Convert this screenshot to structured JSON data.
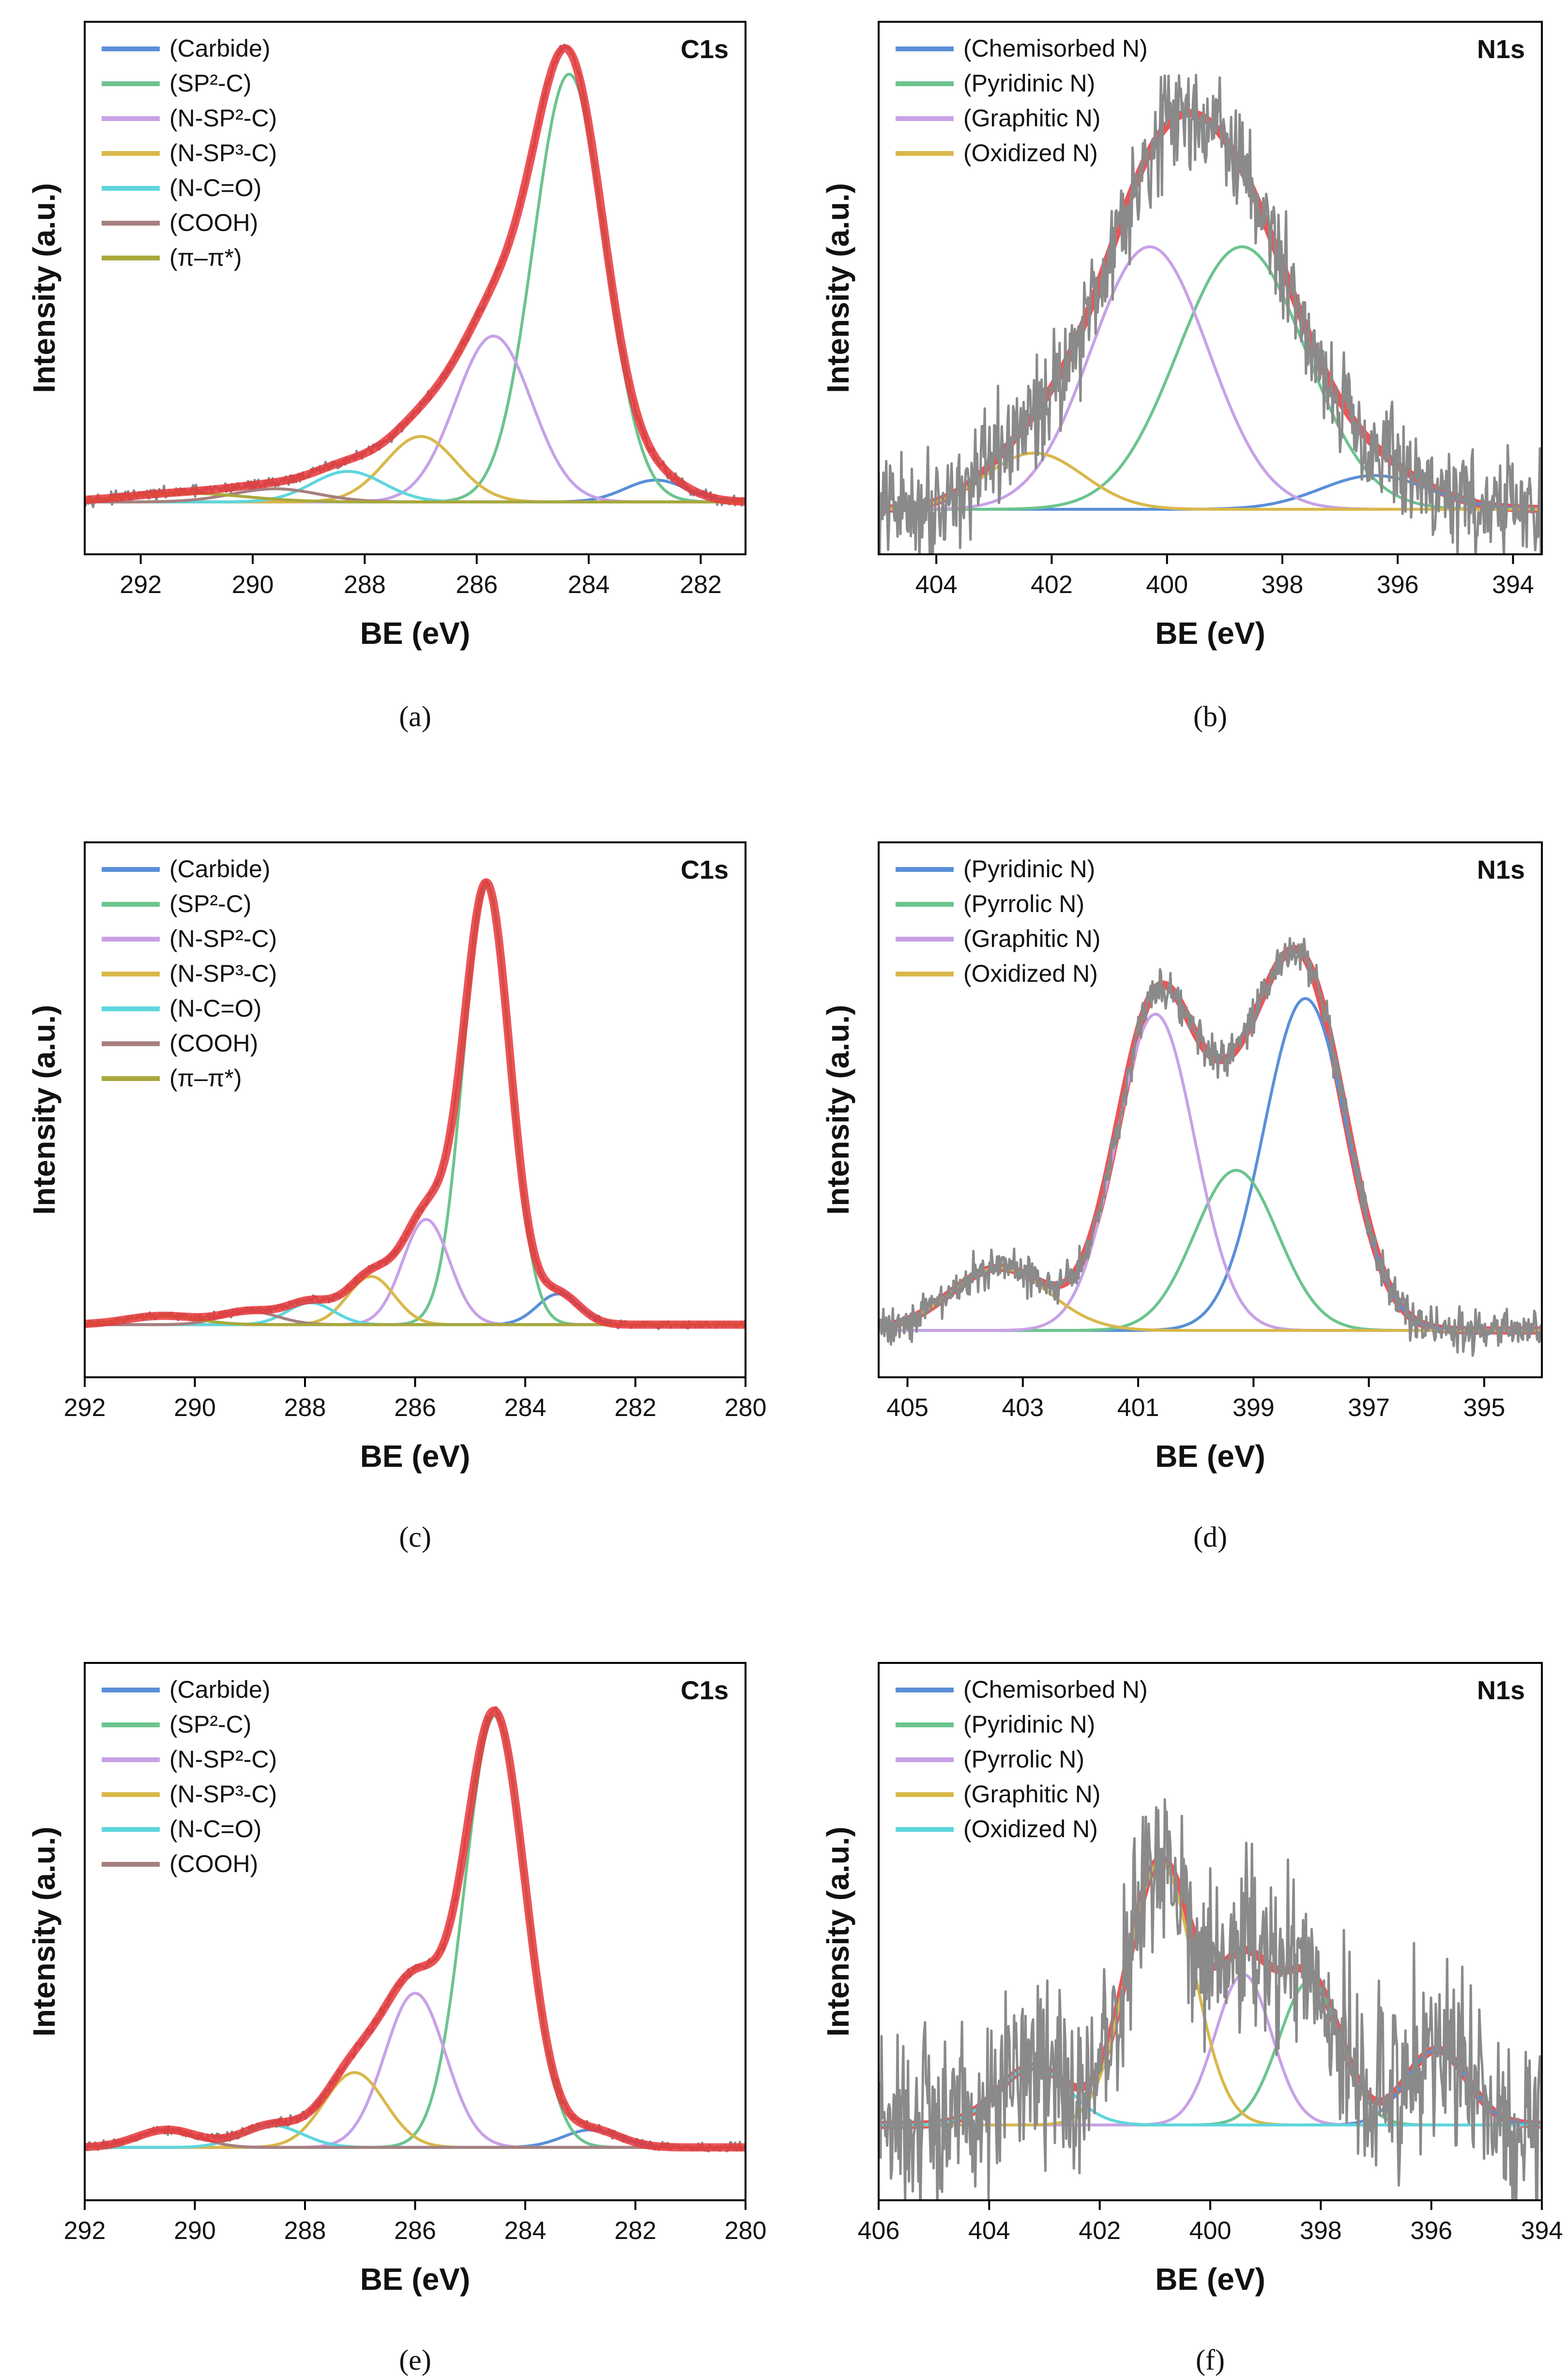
{
  "figure": {
    "styles": {
      "envelope": "#e8373a",
      "raw": "#8a8a8a",
      "frame": "#000000"
    },
    "panels": [
      {
        "id": "a",
        "caption": "(a)",
        "tag": "C1s",
        "xlabel": "BE (eV)",
        "ylabel": "Intensity (a.u.)",
        "xlim": [
          293,
          281.2
        ],
        "xticks": [
          292,
          290,
          288,
          286,
          284,
          282
        ],
        "ylim": [
          -0.12,
          1.1
        ],
        "noise": 0.006,
        "raw_on_top": false,
        "components": [
          {
            "label": "(Carbide)",
            "color": "#5a8fd8",
            "center": 282.8,
            "height": 0.05,
            "fwhm": 1.3
          },
          {
            "label": "(SP²-C)",
            "color": "#6cc48e",
            "center": 284.35,
            "height": 0.98,
            "fwhm": 1.5
          },
          {
            "label": "(N-SP²-C)",
            "color": "#c8a1e6",
            "center": 285.7,
            "height": 0.38,
            "fwhm": 1.6
          },
          {
            "label": "(N-SP³-C)",
            "color": "#d9b84a",
            "center": 287.0,
            "height": 0.15,
            "fwhm": 1.5
          },
          {
            "label": "(N-C=O)",
            "color": "#5ed6dc",
            "center": 288.3,
            "height": 0.07,
            "fwhm": 1.5
          },
          {
            "label": "(COOH)",
            "color": "#a67f7f",
            "center": 289.6,
            "height": 0.03,
            "fwhm": 1.8
          },
          {
            "label": "(π–π*)",
            "color": "#a8a83c",
            "center": 291.2,
            "height": 0.02,
            "fwhm": 2.5
          }
        ]
      },
      {
        "id": "b",
        "caption": "(b)",
        "tag": "N1s",
        "xlabel": "BE (eV)",
        "ylabel": "Intensity (a.u.)",
        "xlim": [
          405,
          393.5
        ],
        "xticks": [
          404,
          402,
          400,
          398,
          396,
          394
        ],
        "ylim": [
          -0.12,
          1.3
        ],
        "noise": 0.07,
        "raw_on_top": true,
        "components": [
          {
            "label": "(Chemisorbed N)",
            "color": "#5a8fd8",
            "center": 396.4,
            "height": 0.09,
            "fwhm": 2.2
          },
          {
            "label": "(Pyridinic N)",
            "color": "#6cc48e",
            "center": 398.7,
            "height": 0.7,
            "fwhm": 2.6
          },
          {
            "label": "(Graphitic N)",
            "color": "#c8a1e6",
            "center": 400.3,
            "height": 0.7,
            "fwhm": 2.4
          },
          {
            "label": "(Oxidized N)",
            "color": "#d9b84a",
            "center": 402.3,
            "height": 0.15,
            "fwhm": 2.0
          }
        ]
      },
      {
        "id": "c",
        "caption": "(c)",
        "tag": "C1s",
        "xlabel": "BE (eV)",
        "ylabel": "Intensity (a.u.)",
        "xlim": [
          292,
          280
        ],
        "xticks": [
          292,
          290,
          288,
          286,
          284,
          282,
          280
        ],
        "ylim": [
          -0.12,
          1.1
        ],
        "noise": 0.004,
        "raw_on_top": false,
        "components": [
          {
            "label": "(Carbide)",
            "color": "#5a8fd8",
            "center": 283.4,
            "height": 0.07,
            "fwhm": 0.9
          },
          {
            "label": "(SP²-C)",
            "color": "#6cc48e",
            "center": 284.7,
            "height": 1.0,
            "fwhm": 1.0
          },
          {
            "label": "(N-SP²-C)",
            "color": "#c8a1e6",
            "center": 285.8,
            "height": 0.24,
            "fwhm": 1.0
          },
          {
            "label": "(N-SP³-C)",
            "color": "#d9b84a",
            "center": 286.8,
            "height": 0.11,
            "fwhm": 1.0
          },
          {
            "label": "(N-C=O)",
            "color": "#5ed6dc",
            "center": 287.9,
            "height": 0.05,
            "fwhm": 1.0
          },
          {
            "label": "(COOH)",
            "color": "#a67f7f",
            "center": 289.0,
            "height": 0.03,
            "fwhm": 1.2
          },
          {
            "label": "(π–π*)",
            "color": "#a8a83c",
            "center": 290.6,
            "height": 0.02,
            "fwhm": 1.5
          }
        ]
      },
      {
        "id": "d",
        "caption": "(d)",
        "tag": "N1s",
        "xlabel": "BE (eV)",
        "ylabel": "Intensity (a.u.)",
        "xlim": [
          405.5,
          394
        ],
        "xticks": [
          405,
          403,
          401,
          399,
          397,
          395
        ],
        "ylim": [
          -0.12,
          1.25
        ],
        "noise": 0.025,
        "raw_on_top": true,
        "components": [
          {
            "label": "(Pyridinic N)",
            "color": "#5a8fd8",
            "center": 398.1,
            "height": 0.85,
            "fwhm": 1.7
          },
          {
            "label": "(Pyrrolic N)",
            "color": "#6cc48e",
            "center": 399.3,
            "height": 0.41,
            "fwhm": 1.7
          },
          {
            "label": "(Graphitic N)",
            "color": "#c8a1e6",
            "center": 400.7,
            "height": 0.81,
            "fwhm": 1.6
          },
          {
            "label": "(Oxidized N)",
            "color": "#d9b84a",
            "center": 403.4,
            "height": 0.16,
            "fwhm": 2.0
          }
        ]
      },
      {
        "id": "e",
        "caption": "(e)",
        "tag": "C1s",
        "xlabel": "BE (eV)",
        "ylabel": "Intensity (a.u.)",
        "xlim": [
          292,
          280
        ],
        "xticks": [
          292,
          290,
          288,
          286,
          284,
          282,
          280
        ],
        "ylim": [
          -0.12,
          1.1
        ],
        "noise": 0.005,
        "raw_on_top": false,
        "components": [
          {
            "label": "(Carbide)",
            "color": "#5a8fd8",
            "center": 282.8,
            "height": 0.04,
            "fwhm": 1.2
          },
          {
            "label": "(SP²-C)",
            "color": "#6cc48e",
            "center": 284.55,
            "height": 0.98,
            "fwhm": 1.3
          },
          {
            "label": "(N-SP²-C)",
            "color": "#c8a1e6",
            "center": 286.0,
            "height": 0.35,
            "fwhm": 1.3
          },
          {
            "label": "(N-SP³-C)",
            "color": "#d9b84a",
            "center": 287.1,
            "height": 0.17,
            "fwhm": 1.3
          },
          {
            "label": "(N-C=O)",
            "color": "#5ed6dc",
            "center": 288.6,
            "height": 0.05,
            "fwhm": 1.3
          },
          {
            "label": "(COOH)",
            "color": "#a67f7f",
            "center": 290.5,
            "height": 0.04,
            "fwhm": 1.3
          }
        ]
      },
      {
        "id": "f",
        "caption": "(f)",
        "tag": "N1s",
        "xlabel": "BE (eV)",
        "ylabel": "Intensity (a.u.)",
        "xlim": [
          406,
          394
        ],
        "xticks": [
          406,
          404,
          402,
          400,
          398,
          396,
          394
        ],
        "ylim": [
          -0.22,
          1.35
        ],
        "noise": 0.13,
        "raw_on_top": true,
        "components": [
          {
            "label": "(Chemisorbed N)",
            "color": "#5a8fd8",
            "center": 395.9,
            "height": 0.22,
            "fwhm": 1.3
          },
          {
            "label": "(Pyridinic N)",
            "color": "#6cc48e",
            "center": 398.2,
            "height": 0.42,
            "fwhm": 1.3
          },
          {
            "label": "(Pyrrolic N)",
            "color": "#c8a1e6",
            "center": 399.4,
            "height": 0.44,
            "fwhm": 1.2
          },
          {
            "label": "(Graphitic N)",
            "color": "#d9b84a",
            "center": 400.9,
            "height": 0.77,
            "fwhm": 1.4
          },
          {
            "label": "(Oxidized N)",
            "color": "#5ed6dc",
            "center": 403.2,
            "height": 0.17,
            "fwhm": 1.5
          }
        ]
      }
    ]
  },
  "chart_data": [
    {
      "type": "line",
      "title": "C1s",
      "xlabel": "BE (eV)",
      "ylabel": "Intensity (a.u.)",
      "xlim": [
        293,
        281.2
      ],
      "series": [
        {
          "name": "(Carbide)",
          "peak_x": 282.8,
          "peak_y": 0.05
        },
        {
          "name": "(SP²-C)",
          "peak_x": 284.35,
          "peak_y": 0.98
        },
        {
          "name": "(N-SP²-C)",
          "peak_x": 285.7,
          "peak_y": 0.38
        },
        {
          "name": "(N-SP³-C)",
          "peak_x": 287.0,
          "peak_y": 0.15
        },
        {
          "name": "(N-C=O)",
          "peak_x": 288.3,
          "peak_y": 0.07
        },
        {
          "name": "(COOH)",
          "peak_x": 289.6,
          "peak_y": 0.03
        },
        {
          "name": "(π–π*)",
          "peak_x": 291.2,
          "peak_y": 0.02
        }
      ]
    },
    {
      "type": "line",
      "title": "N1s",
      "xlabel": "BE (eV)",
      "ylabel": "Intensity (a.u.)",
      "xlim": [
        405,
        393.5
      ],
      "series": [
        {
          "name": "(Chemisorbed N)",
          "peak_x": 396.4,
          "peak_y": 0.09
        },
        {
          "name": "(Pyridinic N)",
          "peak_x": 398.7,
          "peak_y": 0.7
        },
        {
          "name": "(Graphitic N)",
          "peak_x": 400.3,
          "peak_y": 0.7
        },
        {
          "name": "(Oxidized N)",
          "peak_x": 402.3,
          "peak_y": 0.15
        }
      ]
    },
    {
      "type": "line",
      "title": "C1s",
      "xlabel": "BE (eV)",
      "ylabel": "Intensity (a.u.)",
      "xlim": [
        292,
        280
      ],
      "series": [
        {
          "name": "(Carbide)",
          "peak_x": 283.4,
          "peak_y": 0.07
        },
        {
          "name": "(SP²-C)",
          "peak_x": 284.7,
          "peak_y": 1.0
        },
        {
          "name": "(N-SP²-C)",
          "peak_x": 285.8,
          "peak_y": 0.24
        },
        {
          "name": "(N-SP³-C)",
          "peak_x": 286.8,
          "peak_y": 0.11
        },
        {
          "name": "(N-C=O)",
          "peak_x": 287.9,
          "peak_y": 0.05
        },
        {
          "name": "(COOH)",
          "peak_x": 289.0,
          "peak_y": 0.03
        },
        {
          "name": "(π–π*)",
          "peak_x": 290.6,
          "peak_y": 0.02
        }
      ]
    },
    {
      "type": "line",
      "title": "N1s",
      "xlabel": "BE (eV)",
      "ylabel": "Intensity (a.u.)",
      "xlim": [
        405.5,
        394
      ],
      "series": [
        {
          "name": "(Pyridinic N)",
          "peak_x": 398.1,
          "peak_y": 0.85
        },
        {
          "name": "(Pyrrolic N)",
          "peak_x": 399.3,
          "peak_y": 0.41
        },
        {
          "name": "(Graphitic N)",
          "peak_x": 400.7,
          "peak_y": 0.81
        },
        {
          "name": "(Oxidized N)",
          "peak_x": 403.4,
          "peak_y": 0.16
        }
      ]
    },
    {
      "type": "line",
      "title": "C1s",
      "xlabel": "BE (eV)",
      "ylabel": "Intensity (a.u.)",
      "xlim": [
        292,
        280
      ],
      "series": [
        {
          "name": "(Carbide)",
          "peak_x": 282.8,
          "peak_y": 0.04
        },
        {
          "name": "(SP²-C)",
          "peak_x": 284.55,
          "peak_y": 0.98
        },
        {
          "name": "(N-SP²-C)",
          "peak_x": 286.0,
          "peak_y": 0.35
        },
        {
          "name": "(N-SP³-C)",
          "peak_x": 287.1,
          "peak_y": 0.17
        },
        {
          "name": "(N-C=O)",
          "peak_x": 288.6,
          "peak_y": 0.05
        },
        {
          "name": "(COOH)",
          "peak_x": 290.5,
          "peak_y": 0.04
        }
      ]
    },
    {
      "type": "line",
      "title": "N1s",
      "xlabel": "BE (eV)",
      "ylabel": "Intensity (a.u.)",
      "xlim": [
        406,
        394
      ],
      "series": [
        {
          "name": "(Chemisorbed N)",
          "peak_x": 395.9,
          "peak_y": 0.22
        },
        {
          "name": "(Pyridinic N)",
          "peak_x": 398.2,
          "peak_y": 0.42
        },
        {
          "name": "(Pyrrolic N)",
          "peak_x": 399.4,
          "peak_y": 0.44
        },
        {
          "name": "(Graphitic N)",
          "peak_x": 400.9,
          "peak_y": 0.77
        },
        {
          "name": "(Oxidized N)",
          "peak_x": 403.2,
          "peak_y": 0.17
        }
      ]
    }
  ]
}
